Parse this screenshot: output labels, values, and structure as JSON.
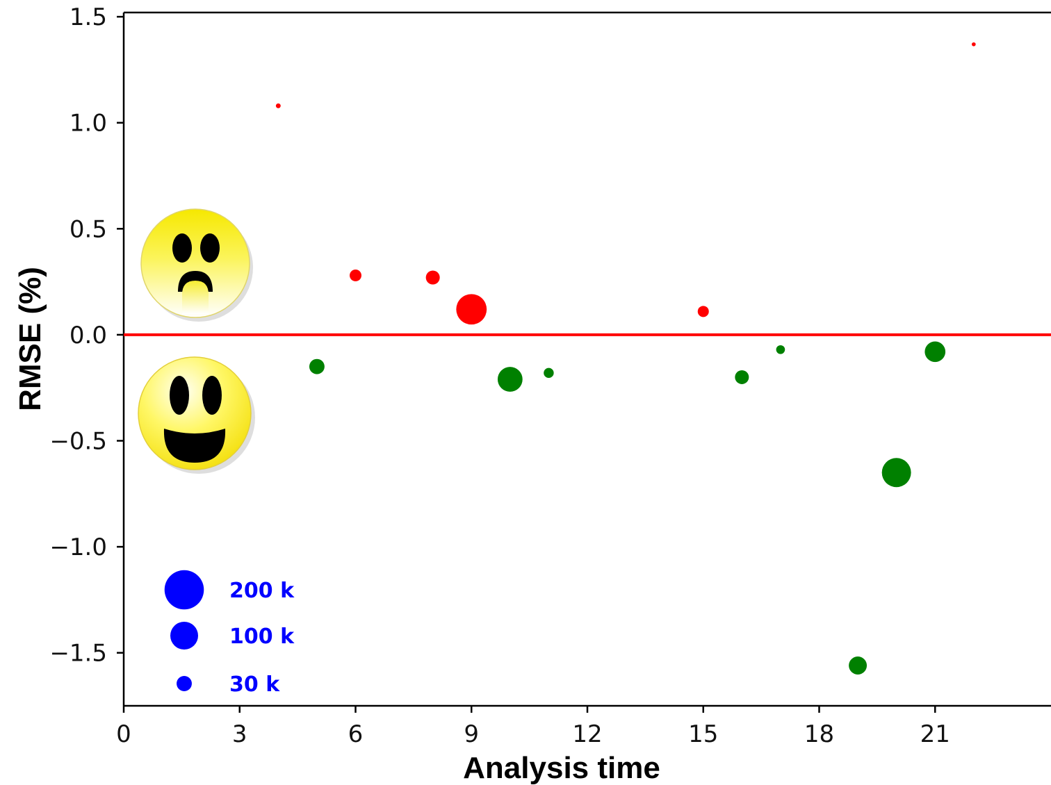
{
  "colors": {
    "above": "#ff0000",
    "below": "#008000",
    "legend": "#0000ff",
    "zero_line": "#ff0000",
    "axes": "#000000"
  },
  "icons": {
    "upper": "sad-face-icon",
    "lower": "smiley-face-icon"
  },
  "chart_data": {
    "type": "scatter",
    "title": "",
    "xlabel": "Analysis time",
    "ylabel": "RMSE (%)",
    "xlim": [
      0,
      24
    ],
    "ylim": [
      -1.75,
      1.52
    ],
    "xticks": [
      0,
      3,
      6,
      9,
      12,
      15,
      18,
      21
    ],
    "xtick_labels": [
      "0",
      "3",
      "6",
      "9",
      "12",
      "15",
      "18",
      "21"
    ],
    "yticks": [
      1.5,
      1.0,
      0.5,
      0.0,
      -0.5,
      -1.0,
      -1.5
    ],
    "ytick_labels": [
      "1.5",
      "1.0",
      "0.5",
      "0.0",
      "−0.5",
      "−1.0",
      "−1.5"
    ],
    "grid": false,
    "reference_line": {
      "y": 0
    },
    "points": [
      {
        "x": 4,
        "y": 1.08,
        "size_k": 3
      },
      {
        "x": 5,
        "y": -0.15,
        "size_k": 30
      },
      {
        "x": 6,
        "y": 0.28,
        "size_k": 18
      },
      {
        "x": 8,
        "y": 0.27,
        "size_k": 25
      },
      {
        "x": 9,
        "y": 0.12,
        "size_k": 120
      },
      {
        "x": 10,
        "y": -0.21,
        "size_k": 80
      },
      {
        "x": 11,
        "y": -0.18,
        "size_k": 13
      },
      {
        "x": 15,
        "y": 0.11,
        "size_k": 16
      },
      {
        "x": 16,
        "y": -0.2,
        "size_k": 25
      },
      {
        "x": 17,
        "y": -0.07,
        "size_k": 10
      },
      {
        "x": 19,
        "y": -1.56,
        "size_k": 42
      },
      {
        "x": 20,
        "y": -0.65,
        "size_k": 110
      },
      {
        "x": 21,
        "y": -0.08,
        "size_k": 55
      },
      {
        "x": 22,
        "y": 1.37,
        "size_k": 2
      }
    ],
    "size_legend": [
      {
        "label": "200 k",
        "size_k": 200
      },
      {
        "label": "100 k",
        "size_k": 100
      },
      {
        "label": "30 k",
        "size_k": 30
      }
    ]
  }
}
